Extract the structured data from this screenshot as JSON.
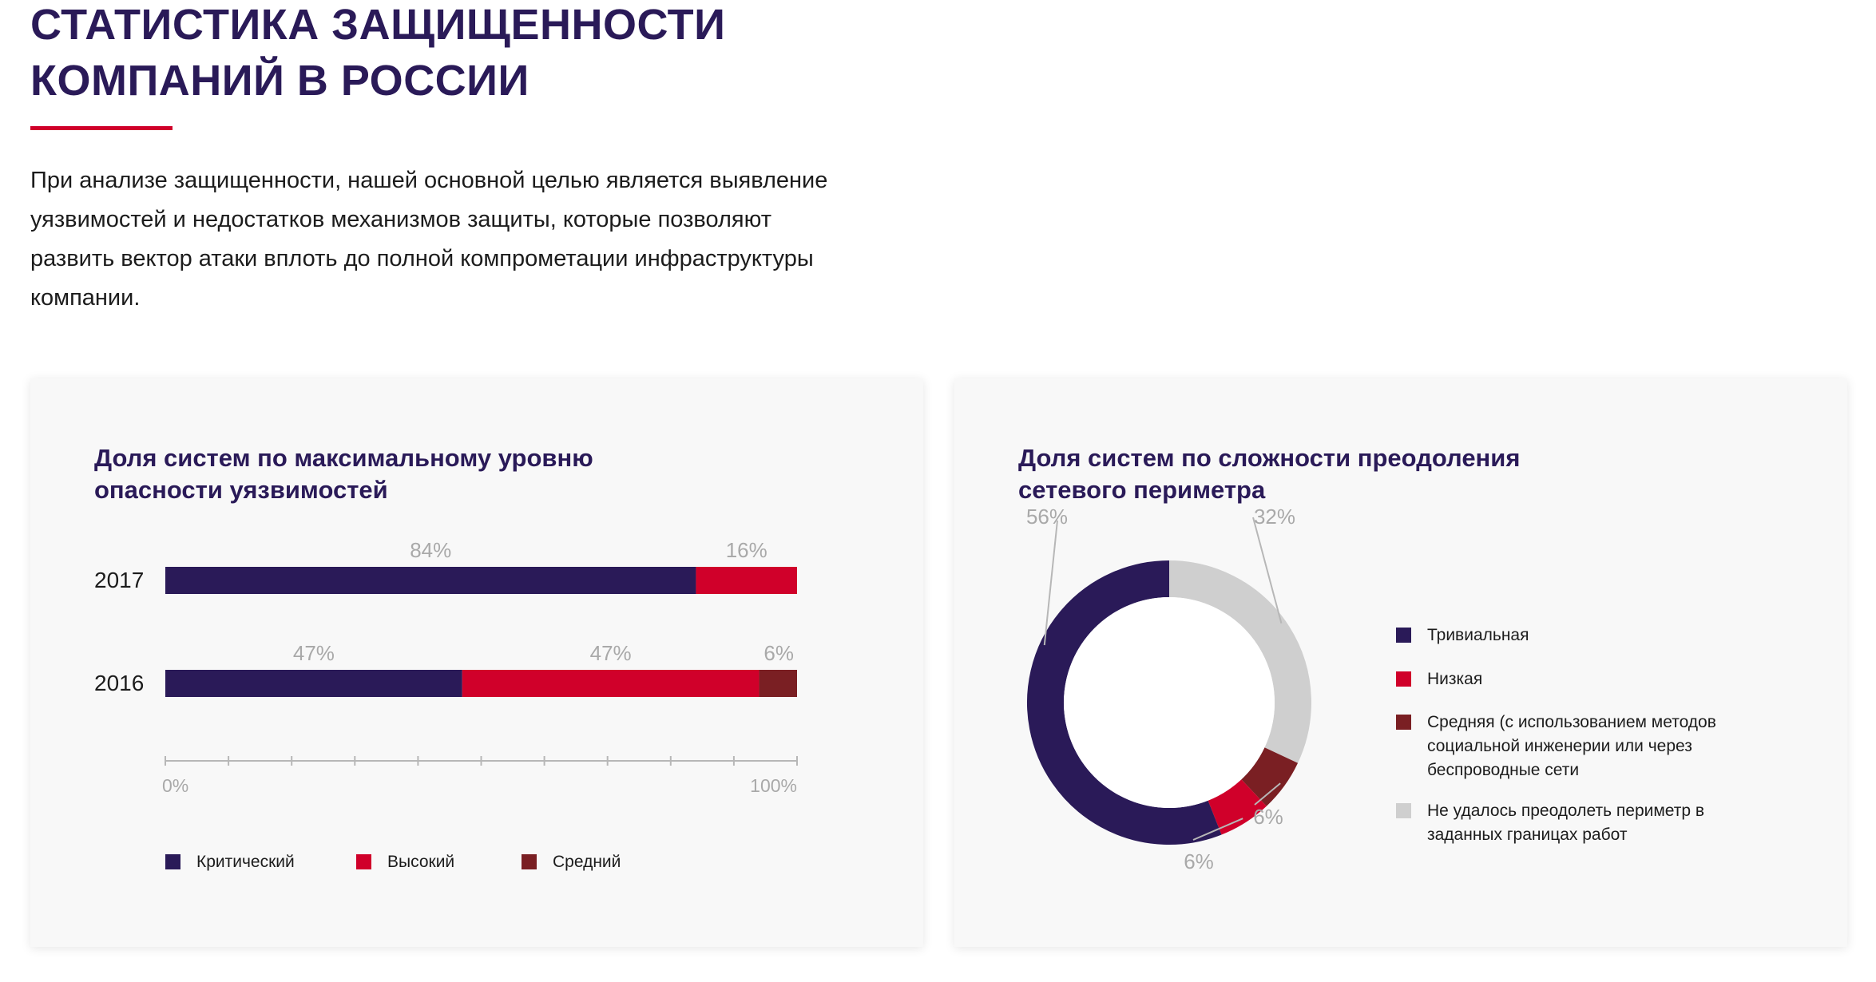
{
  "header": {
    "title_line1": "СТАТИСТИКА ЗАЩИЩЕННОСТИ",
    "title_line2": "КОМПАНИЙ В РОССИИ",
    "intro": "При анализе защищенности, нашей основной целью является выявление уязвимостей и недостатков механизмов защиты, которые позволяют развить вектор атаки вплоть до полной компрометации инфраструктуры компании."
  },
  "colors": {
    "critical": "#2a1a58",
    "high": "#d0002a",
    "medium": "#7a1f23",
    "unbroken": "#cfcfcf",
    "accent": "#d0002a"
  },
  "chart_data": [
    {
      "type": "bar",
      "orientation": "horizontal-stacked",
      "title": "Доля систем по максимальному уровню опасности уязвимостей",
      "categories": [
        "2017",
        "2016"
      ],
      "series": [
        {
          "name": "Критический",
          "color": "#2a1a58",
          "values": [
            84,
            47
          ],
          "labels": [
            "84%",
            "47%"
          ]
        },
        {
          "name": "Высокий",
          "color": "#d0002a",
          "values": [
            16,
            47
          ],
          "labels": [
            "16%",
            "47%"
          ]
        },
        {
          "name": "Средний",
          "color": "#7a1f23",
          "values": [
            0,
            6
          ],
          "labels": [
            "",
            "6%"
          ]
        }
      ],
      "xlim": [
        0,
        100
      ],
      "xtick_labels": {
        "min": "0%",
        "max": "100%"
      },
      "legend": "bottom"
    },
    {
      "type": "pie",
      "style": "donut",
      "title": "Доля систем по сложности преодоления сетевого периметра",
      "slices": [
        {
          "name": "Не удалось преодолеть периметр в заданных границах работ",
          "value": 32,
          "label": "32%",
          "color": "#cfcfcf"
        },
        {
          "name": "Средняя (с использованием методов социальной инженерии или через беспроводные сети",
          "value": 6,
          "label": "6%",
          "color": "#7a1f23"
        },
        {
          "name": "Низкая",
          "value": 6,
          "label": "6%",
          "color": "#d0002a"
        },
        {
          "name": "Тривиальная",
          "value": 56,
          "label": "56%",
          "color": "#2a1a58"
        }
      ],
      "legend": {
        "placement": "right",
        "items": [
          {
            "label": "Тривиальная",
            "color": "#2a1a58"
          },
          {
            "label": "Низкая",
            "color": "#d0002a"
          },
          {
            "label": "Средняя (с использованием методов социальной инженерии или через беспроводные сети",
            "color": "#7a1f23"
          },
          {
            "label": "Не удалось преодолеть периметр в заданных границах работ",
            "color": "#cfcfcf"
          }
        ]
      }
    }
  ]
}
